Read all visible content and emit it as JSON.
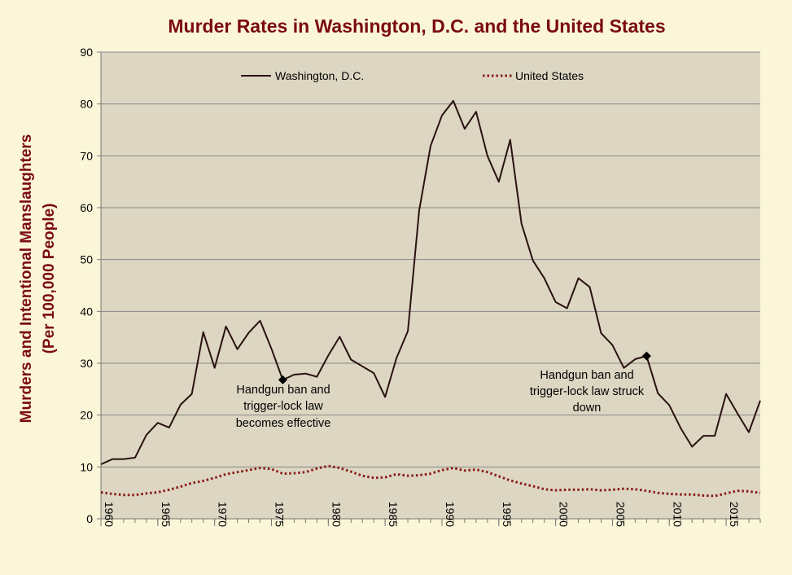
{
  "chart_data": {
    "type": "line",
    "title": "Murder Rates in Washington, D.C. and the United States",
    "ylabel_line1": "Murders and Intentional Manslaughters",
    "ylabel_line2": "(Per 100,000 People)",
    "xlabel": "",
    "ylim": [
      0,
      90
    ],
    "xlim": [
      1960,
      2018
    ],
    "yticks": [
      0,
      10,
      20,
      30,
      40,
      50,
      60,
      70,
      80,
      90
    ],
    "xticks": [
      1960,
      1965,
      1970,
      1975,
      1980,
      1985,
      1990,
      1995,
      2000,
      2005,
      2010,
      2015
    ],
    "grid": true,
    "legend_position": "top",
    "colors": {
      "title": "#7a0a12",
      "dc_line": "#2a1210",
      "us_line": "#8b1a1a",
      "plot_bg": "#dcd6c2",
      "page_bg": "#fbf6d8",
      "grid": "#888888"
    },
    "x": [
      1960,
      1961,
      1962,
      1963,
      1964,
      1965,
      1966,
      1967,
      1968,
      1969,
      1970,
      1971,
      1972,
      1973,
      1974,
      1975,
      1976,
      1977,
      1978,
      1979,
      1980,
      1981,
      1982,
      1983,
      1984,
      1985,
      1986,
      1987,
      1988,
      1989,
      1990,
      1991,
      1992,
      1993,
      1994,
      1995,
      1996,
      1997,
      1998,
      1999,
      2000,
      2001,
      2002,
      2003,
      2004,
      2005,
      2006,
      2007,
      2008,
      2009,
      2010,
      2011,
      2012,
      2013,
      2014,
      2015,
      2016,
      2017,
      2018
    ],
    "series": [
      {
        "name": "Washington, D.C.",
        "style": "solid",
        "values": [
          10.5,
          11.5,
          11.5,
          11.8,
          16.2,
          18.5,
          17.6,
          22.0,
          24.1,
          36.0,
          29.1,
          37.1,
          32.7,
          35.9,
          38.2,
          32.8,
          26.8,
          27.8,
          28.0,
          27.4,
          31.5,
          35.1,
          30.7,
          29.4,
          28.1,
          23.5,
          31.0,
          36.2,
          59.5,
          71.9,
          77.8,
          80.6,
          75.2,
          78.5,
          70.0,
          65.0,
          73.1,
          56.9,
          49.8,
          46.4,
          41.8,
          40.6,
          46.4,
          44.7,
          35.8,
          33.5,
          29.1,
          30.8,
          31.4,
          24.2,
          21.9,
          17.5,
          13.9,
          16.0,
          16.0,
          24.1,
          20.3,
          16.7,
          22.8
        ]
      },
      {
        "name": "United States",
        "style": "dotted",
        "values": [
          5.1,
          4.8,
          4.6,
          4.6,
          4.9,
          5.1,
          5.6,
          6.2,
          6.9,
          7.3,
          7.9,
          8.6,
          9.0,
          9.4,
          9.8,
          9.6,
          8.7,
          8.8,
          9.0,
          9.7,
          10.2,
          9.8,
          9.1,
          8.3,
          7.9,
          8.0,
          8.6,
          8.3,
          8.4,
          8.7,
          9.4,
          9.8,
          9.3,
          9.5,
          9.0,
          8.2,
          7.4,
          6.8,
          6.3,
          5.7,
          5.5,
          5.6,
          5.6,
          5.7,
          5.5,
          5.6,
          5.8,
          5.7,
          5.4,
          5.0,
          4.8,
          4.7,
          4.7,
          4.5,
          4.4,
          4.9,
          5.4,
          5.3,
          5.0
        ]
      }
    ],
    "annotations": [
      {
        "year": 1976,
        "value": 26.8,
        "lines": [
          "Handgun ban and",
          "trigger-lock law",
          "becomes effective"
        ]
      },
      {
        "year": 2008,
        "value": 31.4,
        "lines": [
          "Handgun ban and",
          "trigger-lock law struck",
          "down"
        ]
      }
    ]
  }
}
